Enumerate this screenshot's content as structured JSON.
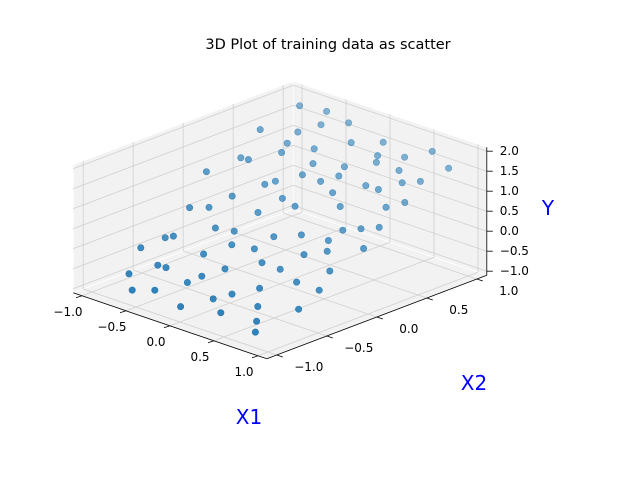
{
  "chart_data": {
    "type": "scatter",
    "projection": "3d",
    "title": "3D Plot of training data as scatter",
    "xlabel": "X1",
    "ylabel": "X2",
    "zlabel": "Y",
    "axis_label_color": "#0000ff",
    "point_color": "#1f77b4",
    "pane_color": "#f2f2f2",
    "grid": true,
    "xlim": [
      -1.1,
      1.1
    ],
    "ylim": [
      -1.1,
      1.1
    ],
    "zlim": [
      -1.1,
      2.1
    ],
    "x_ticks": [
      "−1.0",
      "−0.5",
      "0.0",
      "0.5",
      "1.0"
    ],
    "y_ticks": [
      "−1.0",
      "−0.5",
      "0.0",
      "0.5",
      "1.0"
    ],
    "z_ticks": [
      "−1.0",
      "−0.5",
      "0.0",
      "0.5",
      "1.0",
      "1.5",
      "2.0"
    ],
    "x_tick_values": [
      -1.0,
      -0.5,
      0.0,
      0.5,
      1.0
    ],
    "y_tick_values": [
      -1.0,
      -0.5,
      0.0,
      0.5,
      1.0
    ],
    "z_tick_values": [
      -1.0,
      -0.5,
      0.0,
      0.5,
      1.0,
      1.5,
      2.0
    ],
    "points": [
      {
        "x": -0.95,
        "y": 0.1,
        "z": 0.9
      },
      {
        "x": -0.9,
        "y": -0.6,
        "z": -0.3
      },
      {
        "x": -0.85,
        "y": 0.55,
        "z": 1.6
      },
      {
        "x": -0.8,
        "y": -0.2,
        "z": 0.4
      },
      {
        "x": -0.8,
        "y": 0.9,
        "z": 1.9
      },
      {
        "x": -0.75,
        "y": -0.85,
        "z": -0.6
      },
      {
        "x": -0.7,
        "y": 0.3,
        "z": 1.2
      },
      {
        "x": -0.7,
        "y": -0.45,
        "z": 0.0
      },
      {
        "x": -0.65,
        "y": 0.75,
        "z": 1.5
      },
      {
        "x": -0.6,
        "y": -0.95,
        "z": -0.8
      },
      {
        "x": -0.6,
        "y": 0.05,
        "z": 0.6
      },
      {
        "x": -0.55,
        "y": 0.5,
        "z": 1.3
      },
      {
        "x": -0.5,
        "y": -0.7,
        "z": -0.4
      },
      {
        "x": -0.5,
        "y": 0.85,
        "z": 1.7
      },
      {
        "x": -0.45,
        "y": -0.25,
        "z": 0.2
      },
      {
        "x": -0.4,
        "y": 0.2,
        "z": 0.9
      },
      {
        "x": -0.4,
        "y": -0.9,
        "z": -0.7
      },
      {
        "x": -0.35,
        "y": 0.65,
        "z": 1.4
      },
      {
        "x": -0.3,
        "y": -0.5,
        "z": -0.1
      },
      {
        "x": -0.3,
        "y": 0.95,
        "z": 1.8
      },
      {
        "x": -0.25,
        "y": 0.0,
        "z": 0.5
      },
      {
        "x": -0.2,
        "y": -0.75,
        "z": -0.5
      },
      {
        "x": -0.2,
        "y": 0.4,
        "z": 1.1
      },
      {
        "x": -0.15,
        "y": -0.35,
        "z": 0.1
      },
      {
        "x": -0.1,
        "y": 0.8,
        "z": 1.6
      },
      {
        "x": -0.05,
        "y": -0.95,
        "z": -0.8
      },
      {
        "x": 0.0,
        "y": 0.15,
        "z": 0.7
      },
      {
        "x": 0.0,
        "y": -0.55,
        "z": -0.2
      },
      {
        "x": 0.05,
        "y": 0.6,
        "z": 1.3
      },
      {
        "x": 0.1,
        "y": -0.15,
        "z": 0.3
      },
      {
        "x": 0.15,
        "y": 0.9,
        "z": 1.7
      },
      {
        "x": 0.15,
        "y": -0.8,
        "z": -0.6
      },
      {
        "x": 0.2,
        "y": 0.35,
        "z": 1.0
      },
      {
        "x": 0.25,
        "y": -0.4,
        "z": 0.0
      },
      {
        "x": 0.3,
        "y": 0.7,
        "z": 1.5
      },
      {
        "x": 0.3,
        "y": -0.05,
        "z": 0.4
      },
      {
        "x": 0.35,
        "y": -0.9,
        "z": -0.7
      },
      {
        "x": 0.4,
        "y": 0.25,
        "z": 0.9
      },
      {
        "x": 0.45,
        "y": -0.6,
        "z": -0.3
      },
      {
        "x": 0.45,
        "y": 0.85,
        "z": 1.6
      },
      {
        "x": 0.5,
        "y": -0.2,
        "z": 0.2
      },
      {
        "x": 0.55,
        "y": 0.5,
        "z": 1.2
      },
      {
        "x": 0.6,
        "y": -0.75,
        "z": -0.5
      },
      {
        "x": 0.6,
        "y": 0.1,
        "z": 0.6
      },
      {
        "x": 0.65,
        "y": 0.95,
        "z": 1.8
      },
      {
        "x": 0.7,
        "y": -0.45,
        "z": -0.1
      },
      {
        "x": 0.75,
        "y": 0.4,
        "z": 1.0
      },
      {
        "x": 0.8,
        "y": -0.95,
        "z": -0.8
      },
      {
        "x": 0.8,
        "y": 0.7,
        "z": 1.4
      },
      {
        "x": 0.85,
        "y": -0.25,
        "z": 0.1
      },
      {
        "x": 0.9,
        "y": 0.2,
        "z": 0.8
      },
      {
        "x": 0.95,
        "y": -0.65,
        "z": -0.4
      },
      {
        "x": 0.95,
        "y": 0.85,
        "z": 1.7
      },
      {
        "x": -0.9,
        "y": 0.4,
        "z": 1.0
      },
      {
        "x": -0.75,
        "y": -0.05,
        "z": 0.3
      },
      {
        "x": -0.65,
        "y": -0.65,
        "z": -0.5
      },
      {
        "x": -0.55,
        "y": 0.95,
        "z": 1.9
      },
      {
        "x": -0.45,
        "y": 0.35,
        "z": 0.8
      },
      {
        "x": -0.35,
        "y": -0.15,
        "z": 0.1
      },
      {
        "x": -0.25,
        "y": 0.55,
        "z": 1.2
      },
      {
        "x": -0.15,
        "y": -0.65,
        "z": -0.4
      },
      {
        "x": -0.05,
        "y": 0.45,
        "z": 1.0
      },
      {
        "x": 0.05,
        "y": -0.3,
        "z": 0.1
      },
      {
        "x": 0.2,
        "y": 0.8,
        "z": 1.5
      },
      {
        "x": 0.25,
        "y": -0.7,
        "z": -0.5
      },
      {
        "x": 0.35,
        "y": 0.55,
        "z": 1.1
      },
      {
        "x": 0.4,
        "y": -0.35,
        "z": -0.1
      },
      {
        "x": 0.55,
        "y": 0.0,
        "z": 0.4
      },
      {
        "x": 0.65,
        "y": 0.65,
        "z": 1.3
      },
      {
        "x": 0.7,
        "y": -0.85,
        "z": -0.7
      },
      {
        "x": 0.75,
        "y": 0.15,
        "z": 0.7
      },
      {
        "x": 0.85,
        "y": 0.5,
        "z": 1.1
      },
      {
        "x": 0.9,
        "y": -0.4,
        "z": -0.2
      },
      {
        "x": -0.85,
        "y": -0.4,
        "z": -0.2
      },
      {
        "x": -0.6,
        "y": 0.6,
        "z": 1.4
      },
      {
        "x": -0.2,
        "y": 0.2,
        "z": 0.7
      },
      {
        "x": 0.1,
        "y": 0.5,
        "z": 1.2
      },
      {
        "x": 0.5,
        "y": 0.75,
        "z": 1.4
      },
      {
        "x": 0.65,
        "y": -0.1,
        "z": 0.3
      },
      {
        "x": 0.95,
        "y": 0.0,
        "z": 0.5
      }
    ]
  }
}
